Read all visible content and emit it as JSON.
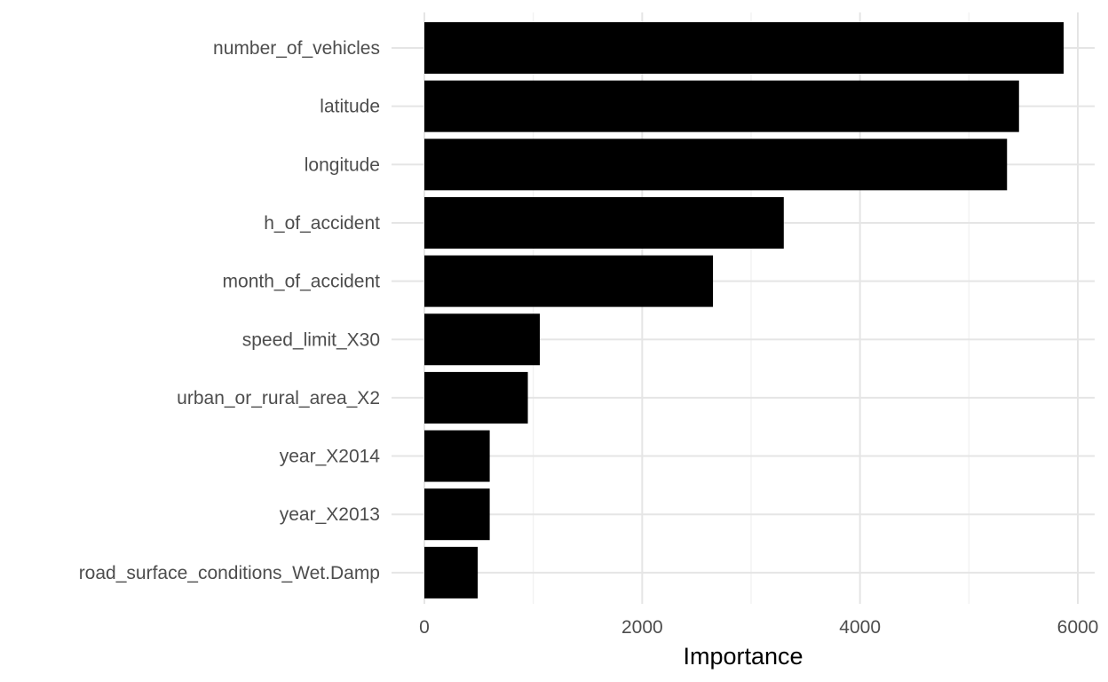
{
  "chart_data": {
    "type": "bar",
    "orientation": "horizontal",
    "categories": [
      "number_of_vehicles",
      "latitude",
      "longitude",
      "h_of_accident",
      "month_of_accident",
      "speed_limit_X30",
      "urban_or_rural_area_X2",
      "year_X2014",
      "year_X2013",
      "road_surface_conditions_Wet.Damp"
    ],
    "values": [
      5870,
      5460,
      5350,
      3300,
      2650,
      1060,
      950,
      600,
      600,
      490
    ],
    "xlabel": "Importance",
    "ylabel": "",
    "xlim": [
      0,
      6000
    ],
    "x_ticks": [
      0,
      2000,
      4000,
      6000
    ],
    "x_tick_labels": [
      "0",
      "2000",
      "4000",
      "6000"
    ],
    "grid": true,
    "bar_color": "#000000",
    "grid_color": "#e5e5e5"
  }
}
